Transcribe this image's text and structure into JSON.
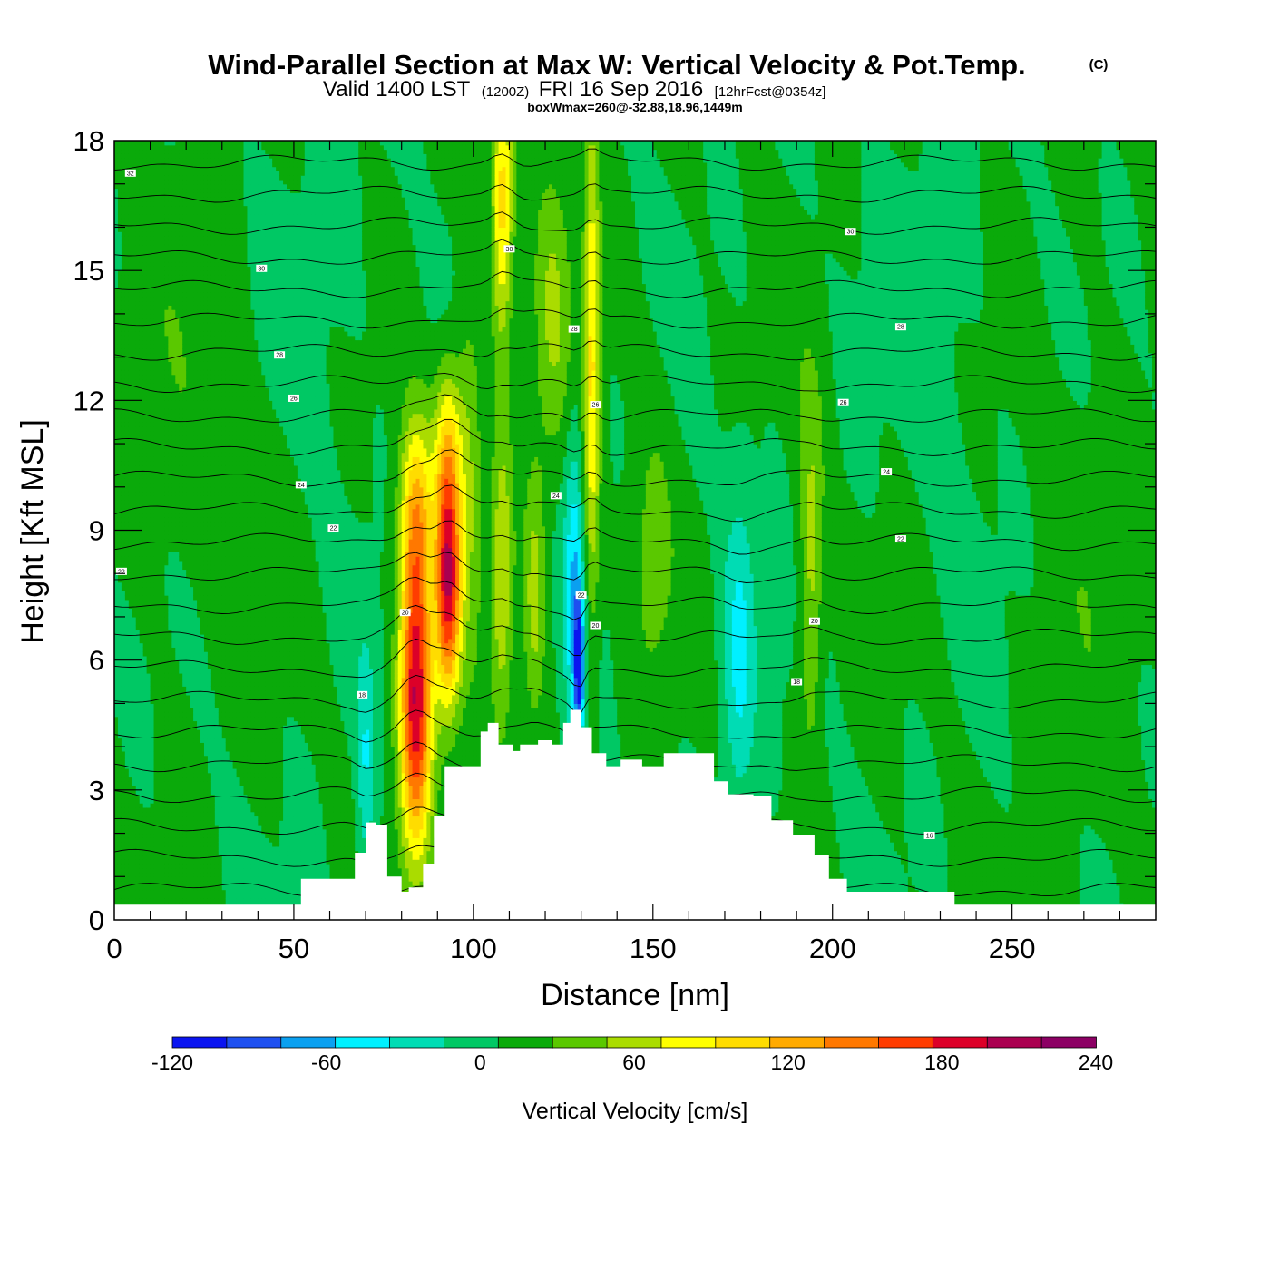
{
  "header": {
    "title": "Wind-Parallel Section at Max W: Vertical Velocity & Pot.Temp.",
    "copyright": "(C)",
    "valid_prefix": "Valid 1400 LST",
    "valid_zulu": "(1200Z)",
    "valid_date": "FRI 16 Sep 2016",
    "forecast": "[12hrFcst@0354z]",
    "boxwmax": "boxWmax=260@-32.88,18.96,1449m"
  },
  "chart_data": {
    "type": "contour",
    "title": "Wind-Parallel Section at Max W: Vertical Velocity & Pot.Temp.",
    "xlabel": "Distance [nm]",
    "ylabel": "Height [Kft MSL]",
    "xlim": [
      0,
      290
    ],
    "ylim": [
      0,
      18
    ],
    "x_ticks": [
      "0",
      "50",
      "100",
      "150",
      "200",
      "250"
    ],
    "x_tick_values": [
      0,
      50,
      100,
      150,
      200,
      250
    ],
    "y_ticks": [
      "0",
      "3",
      "6",
      "9",
      "12",
      "15",
      "18"
    ],
    "y_tick_values": [
      0,
      3,
      6,
      9,
      12,
      15,
      18
    ],
    "colorbar": {
      "label": "Vertical Velocity [cm/s]",
      "tick_labels": [
        "-120",
        "-60",
        "0",
        "60",
        "120",
        "180",
        "240"
      ],
      "tick_values": [
        -120,
        -60,
        0,
        60,
        120,
        180,
        240
      ],
      "colors": [
        "#0a14f0",
        "#1e50f0",
        "#0aa0f0",
        "#00f0ff",
        "#00dcb4",
        "#00c864",
        "#0aaa0a",
        "#5ac800",
        "#aadc00",
        "#ffff00",
        "#ffdc00",
        "#ffaa00",
        "#ff7800",
        "#ff3c00",
        "#dc0028",
        "#aa0050",
        "#8c0064"
      ]
    },
    "terrain": [
      {
        "x": 0,
        "z": 0.35
      },
      {
        "x": 48,
        "z": 0.35
      },
      {
        "x": 52,
        "z": 0.95
      },
      {
        "x": 63,
        "z": 0.95
      },
      {
        "x": 67,
        "z": 1.55
      },
      {
        "x": 70,
        "z": 2.25
      },
      {
        "x": 73,
        "z": 2.2
      },
      {
        "x": 76,
        "z": 1.0
      },
      {
        "x": 80,
        "z": 0.65
      },
      {
        "x": 82,
        "z": 0.75
      },
      {
        "x": 86,
        "z": 1.3
      },
      {
        "x": 89,
        "z": 2.4
      },
      {
        "x": 92,
        "z": 3.55
      },
      {
        "x": 99,
        "z": 3.55
      },
      {
        "x": 102,
        "z": 4.35
      },
      {
        "x": 104,
        "z": 4.55
      },
      {
        "x": 107,
        "z": 4.05
      },
      {
        "x": 111,
        "z": 3.9
      },
      {
        "x": 113,
        "z": 4.05
      },
      {
        "x": 118,
        "z": 4.15
      },
      {
        "x": 122,
        "z": 4.05
      },
      {
        "x": 125,
        "z": 4.55
      },
      {
        "x": 127,
        "z": 4.85
      },
      {
        "x": 130,
        "z": 4.45
      },
      {
        "x": 133,
        "z": 3.85
      },
      {
        "x": 137,
        "z": 3.55
      },
      {
        "x": 141,
        "z": 3.7
      },
      {
        "x": 147,
        "z": 3.55
      },
      {
        "x": 153,
        "z": 3.85
      },
      {
        "x": 161,
        "z": 3.85
      },
      {
        "x": 167,
        "z": 3.2
      },
      {
        "x": 171,
        "z": 2.9
      },
      {
        "x": 178,
        "z": 2.85
      },
      {
        "x": 183,
        "z": 2.3
      },
      {
        "x": 189,
        "z": 1.95
      },
      {
        "x": 195,
        "z": 1.5
      },
      {
        "x": 199,
        "z": 0.95
      },
      {
        "x": 204,
        "z": 0.65
      },
      {
        "x": 232,
        "z": 0.65
      },
      {
        "x": 234,
        "z": 0.35
      },
      {
        "x": 290,
        "z": 0.35
      }
    ],
    "w_features": [
      {
        "x": 70,
        "z": 3.5,
        "sx": 2.5,
        "sz": 2.8,
        "w": -42
      },
      {
        "x": 84,
        "z": 5.2,
        "sx": 4.5,
        "sz": 3.6,
        "w": 190
      },
      {
        "x": 84,
        "z": 9.5,
        "sx": 4.5,
        "sz": 2.2,
        "w": 85
      },
      {
        "x": 93,
        "z": 7.8,
        "sx": 3.5,
        "sz": 2.7,
        "w": 180
      },
      {
        "x": 93,
        "z": 11,
        "sx": 4,
        "sz": 2,
        "w": 70
      },
      {
        "x": 99,
        "z": 10.5,
        "sx": 3.5,
        "sz": 4,
        "w": 40
      },
      {
        "x": 108,
        "z": 16.5,
        "sx": 3,
        "sz": 3.2,
        "w": 95
      },
      {
        "x": 108,
        "z": 8,
        "sx": 3,
        "sz": 3.5,
        "w": 60
      },
      {
        "x": 117,
        "z": 7.5,
        "sx": 3,
        "sz": 3,
        "w": 50
      },
      {
        "x": 128,
        "z": 7.5,
        "sx": 2.6,
        "sz": 3.8,
        "w": -60
      },
      {
        "x": 129.5,
        "z": 5.8,
        "sx": 1.4,
        "sz": 1.6,
        "w": -95
      },
      {
        "x": 133,
        "z": 13,
        "sx": 2.2,
        "sz": 5.8,
        "w": 85
      },
      {
        "x": 122,
        "z": 14,
        "sx": 5,
        "sz": 3.5,
        "w": 40
      },
      {
        "x": 150,
        "z": 8.5,
        "sx": 6,
        "sz": 3.5,
        "w": 28
      },
      {
        "x": 174,
        "z": 6.2,
        "sx": 4.5,
        "sz": 3.6,
        "w": -48
      },
      {
        "x": 194,
        "z": 7.5,
        "sx": 3,
        "sz": 3.5,
        "w": 45
      },
      {
        "x": 194,
        "z": 11,
        "sx": 5,
        "sz": 3,
        "w": 18
      },
      {
        "x": 20,
        "z": 12,
        "sx": 15,
        "sz": 6,
        "w": 12
      },
      {
        "x": 270,
        "z": 7,
        "sx": 14,
        "sz": 8,
        "w": 10
      },
      {
        "x": 230,
        "z": 14,
        "sx": 12,
        "sz": 5,
        "w": -10
      },
      {
        "x": 60,
        "z": 15,
        "sx": 12,
        "sz": 4,
        "w": -8
      }
    ],
    "theta_labels": [
      {
        "x": 4.5,
        "z": 17.25,
        "text": "32"
      },
      {
        "x": 41,
        "z": 15.05,
        "text": "30"
      },
      {
        "x": 46,
        "z": 13.05,
        "text": "28"
      },
      {
        "x": 50,
        "z": 12.05,
        "text": "26"
      },
      {
        "x": 52,
        "z": 10.05,
        "text": "24"
      },
      {
        "x": 61,
        "z": 9.05,
        "text": "22"
      },
      {
        "x": 2,
        "z": 8.05,
        "text": "22"
      },
      {
        "x": 69,
        "z": 5.2,
        "text": "18"
      },
      {
        "x": 81,
        "z": 7.1,
        "text": "20"
      },
      {
        "x": 110,
        "z": 15.5,
        "text": "30"
      },
      {
        "x": 128,
        "z": 13.65,
        "text": "28"
      },
      {
        "x": 134,
        "z": 11.9,
        "text": "26"
      },
      {
        "x": 123,
        "z": 9.8,
        "text": "24"
      },
      {
        "x": 130,
        "z": 7.5,
        "text": "22"
      },
      {
        "x": 134,
        "z": 6.8,
        "text": "20"
      },
      {
        "x": 203,
        "z": 11.95,
        "text": "26"
      },
      {
        "x": 205,
        "z": 15.9,
        "text": "30"
      },
      {
        "x": 219,
        "z": 13.7,
        "text": "28"
      },
      {
        "x": 215,
        "z": 10.35,
        "text": "24"
      },
      {
        "x": 219,
        "z": 8.8,
        "text": "22"
      },
      {
        "x": 195,
        "z": 6.9,
        "text": "20"
      },
      {
        "x": 190,
        "z": 5.5,
        "text": "18"
      },
      {
        "x": 227,
        "z": 1.95,
        "text": "16"
      }
    ]
  }
}
